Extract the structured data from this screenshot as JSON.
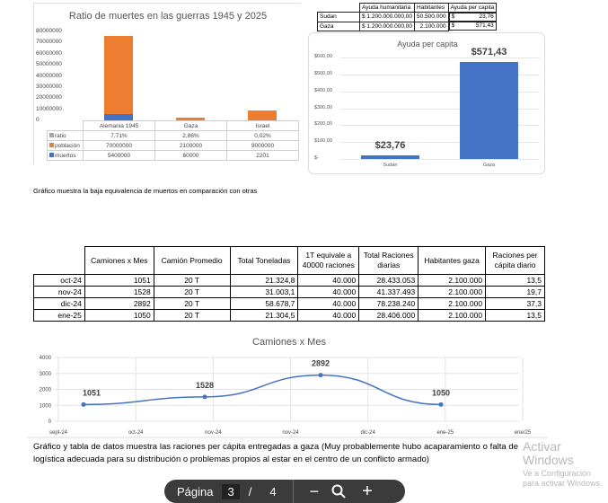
{
  "chart1": {
    "title": "Ratio de muertes en las guerras 1945 y 2025",
    "yticks": [
      "80000000",
      "70000000",
      "60000000",
      "50000000",
      "40000000",
      "30000000",
      "20000000",
      "10000000",
      "0"
    ],
    "chart_data": {
      "type": "bar",
      "stacked": true,
      "title": "Ratio de muertes en las guerras 1945 y 2025",
      "categories": [
        "Alemania 1945",
        "Gaza",
        "Israel"
      ],
      "ylim": [
        0,
        80000000
      ],
      "series": [
        {
          "name": "ratio",
          "color": "#a5a5a5",
          "values": [
            0.0771,
            0.0286,
            0.0002
          ],
          "labels": [
            "7,71%",
            "2,86%",
            "0,02%"
          ]
        },
        {
          "name": "población",
          "color": "#ed7d31",
          "values": [
            70000000,
            2100000,
            9000000
          ],
          "labels": [
            "70000000",
            "2100000",
            "9000000"
          ]
        },
        {
          "name": "muertos",
          "color": "#4472c4",
          "values": [
            5400000,
            60000,
            2201
          ],
          "labels": [
            "5400000",
            "60000",
            "2201"
          ]
        }
      ]
    }
  },
  "small_table": {
    "headers": [
      "",
      "Ayuda humanitaria",
      "Habitantes",
      "Ayuda per capita"
    ],
    "rows": [
      [
        "Sudan",
        "$ 1.200.000.000,00",
        "50.500.000",
        "$",
        "23,76"
      ],
      [
        "Gaza",
        "$ 1.200.000.000,00",
        "2.100.000",
        "$",
        "571,43"
      ]
    ]
  },
  "chart2": {
    "yticks": [
      "$600,00",
      "$500,00",
      "$400,00",
      "$300,00",
      "$200,00",
      "$100,00",
      "$-"
    ],
    "chart_data": {
      "type": "bar",
      "title": "Ayuda per capita",
      "categories": [
        "Sudan",
        "Gaza"
      ],
      "values": [
        23.76,
        571.43
      ],
      "labels": [
        "$23,76",
        "$571,43"
      ],
      "ylim": [
        0,
        600
      ],
      "color": "#4472c4"
    }
  },
  "caption1": "Gráfico muestra la baja equivalencia de muertos en comparación con otras",
  "big_table": {
    "headers": [
      "",
      "Camiones x Mes",
      "Camión Promedio",
      "Total Toneladas",
      "1T equivale a 40000 raciones",
      "Total Raciones diarias",
      "Habitantes gaza",
      "Raciones per cápita diario"
    ],
    "rows": [
      [
        "oct-24",
        "1051",
        "20 T",
        "21.324,8",
        "40.000",
        "28.433.053",
        "2.100.000",
        "13,5"
      ],
      [
        "nov-24",
        "1528",
        "20 T",
        "31.003,1",
        "40.000",
        "41.337.493",
        "2.100.000",
        "19,7"
      ],
      [
        "dic-24",
        "2892",
        "20 T",
        "58.678,7",
        "40.000",
        "78.238.240",
        "2.100.000",
        "37,3"
      ],
      [
        "ene-25",
        "1050",
        "20 T",
        "21.304,5",
        "40.000",
        "28.406.000",
        "2.100.000",
        "13,5"
      ]
    ]
  },
  "chart3": {
    "chart_data": {
      "type": "line",
      "title": "Camiones x Mes",
      "xticks": [
        "sept-24",
        "oct-24",
        "nov-24",
        "nov-24",
        "dic-24",
        "ene-25",
        "ene/25"
      ],
      "yticks": [
        "4000",
        "3000",
        "2000",
        "1000",
        "0"
      ],
      "ylim": [
        0,
        4000
      ],
      "points": [
        {
          "label": "oct-24",
          "y": 1051
        },
        {
          "label": "nov-24",
          "y": 1528
        },
        {
          "label": "dic-24",
          "y": 2892
        },
        {
          "label": "ene-25",
          "y": 1050
        }
      ],
      "color": "#4472c4"
    }
  },
  "paragraph": "Gráfico y tabla de datos muestra las raciones per cápita entregadas a gaza (Muy probablemente hubo acaparamiento o falta de logística adecuada para su distribución o problemas propios al estar en el centro de un conflicto armado)",
  "toolbar": {
    "page_label": "Página",
    "current_page": "3",
    "separator": "/",
    "total_pages": "4"
  },
  "watermark": {
    "line1": "Activar Windows",
    "line2": "Ve a Configuración para activar Windows."
  }
}
